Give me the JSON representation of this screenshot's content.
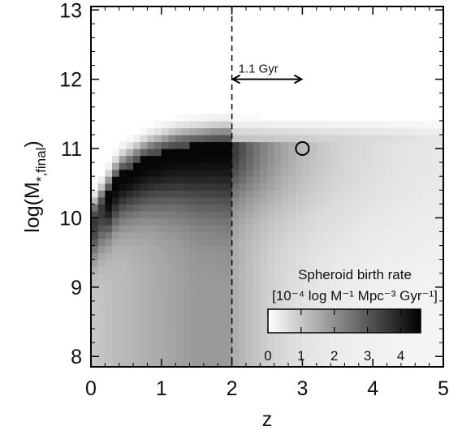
{
  "chart_data": {
    "type": "heatmap",
    "title": "",
    "xlabel": "z",
    "ylabel": "log(M",
    "ylabel_sub": "*,final",
    "xlim": [
      0,
      5
    ],
    "ylim": [
      7.85,
      13.05
    ],
    "xticks": [
      "0",
      "1",
      "2",
      "3",
      "4",
      "5"
    ],
    "yticks": [
      "8",
      "9",
      "10",
      "11",
      "12",
      "13"
    ],
    "value_range": [
      0,
      4.6
    ],
    "cell_size": {
      "dz": 0.1,
      "dlogM": 0.1
    },
    "model_ridge": [
      {
        "z": 0.0,
        "logM": 9.85
      },
      {
        "z": 0.4,
        "logM": 10.55
      },
      {
        "z": 0.8,
        "logM": 10.8
      },
      {
        "z": 1.2,
        "logM": 10.93
      },
      {
        "z": 1.8,
        "logM": 11.0
      },
      {
        "z": 2.6,
        "logM": 11.0
      },
      {
        "z": 3.5,
        "logM": 11.0
      },
      {
        "z": 5.0,
        "logM": 11.0
      }
    ],
    "vertical_line_z": 2.0,
    "annotation": {
      "text": "1.1 Gyr",
      "z_from": 2.0,
      "z_to": 3.0,
      "logM": 12.0
    },
    "marker": {
      "z": 3.0,
      "logM": 11.0,
      "shape": "open-circle"
    },
    "colorbar": {
      "title_line1": "Spheroid birth rate",
      "title_line2": "[10⁻⁴ log M⁻¹ Mpc⁻³ Gyr⁻¹]",
      "ticks": [
        "0",
        "1",
        "2",
        "3",
        "4"
      ],
      "range": [
        0,
        4.6
      ]
    },
    "colors": {
      "axis": "#000000",
      "high": "#000000",
      "low": "#ffffff"
    }
  }
}
